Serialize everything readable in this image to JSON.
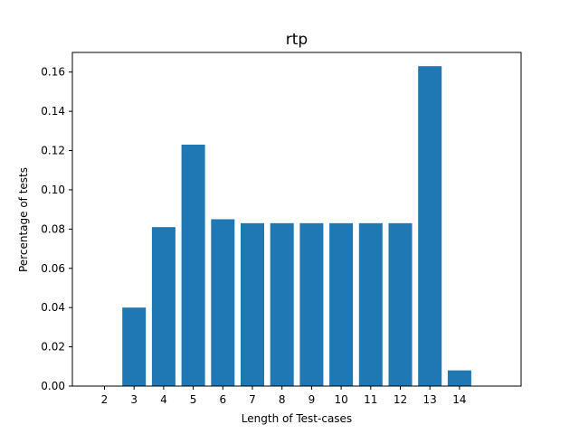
{
  "chart_data": {
    "type": "bar",
    "title": "rtp",
    "xlabel": "Length of Test-cases",
    "ylabel": "Percentage of tests",
    "categories": [
      "2",
      "3",
      "4",
      "5",
      "6",
      "7",
      "8",
      "9",
      "10",
      "11",
      "12",
      "13",
      "14"
    ],
    "values": [
      0.0,
      0.04,
      0.081,
      0.123,
      0.085,
      0.083,
      0.083,
      0.083,
      0.083,
      0.083,
      0.083,
      0.163,
      0.008
    ],
    "ylim": [
      0,
      0.17
    ],
    "yticks": [
      "0.00",
      "0.02",
      "0.04",
      "0.06",
      "0.08",
      "0.10",
      "0.12",
      "0.14",
      "0.16"
    ],
    "bar_color": "#1f77b4",
    "grid": false,
    "legend": "none"
  }
}
